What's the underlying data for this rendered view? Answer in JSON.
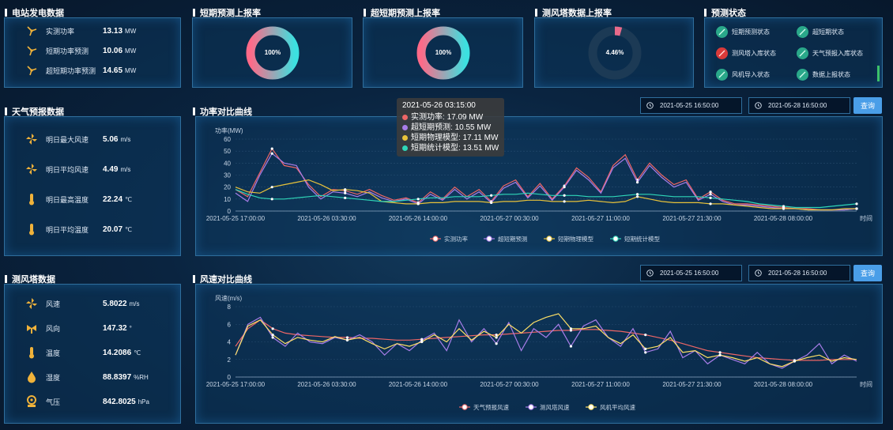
{
  "station": {
    "title": "电站发电数据",
    "rows": [
      {
        "label": "实测功率",
        "value": "13.13",
        "unit": "MW"
      },
      {
        "label": "短期功率预测",
        "value": "10.06",
        "unit": "MW"
      },
      {
        "label": "超短期功率预测",
        "value": "14.65",
        "unit": "MW"
      }
    ]
  },
  "short_report": {
    "title": "短期预测上报率",
    "value": "100%",
    "fraction": 1.0
  },
  "ultra_report": {
    "title": "超短期预测上报率",
    "value": "100%",
    "fraction": 1.0
  },
  "tower_report": {
    "title": "测风塔数据上报率",
    "value": "4.46%",
    "fraction": 0.0446
  },
  "status": {
    "title": "预测状态",
    "items": [
      {
        "label": "短期预测状态",
        "color": "#2aa88a"
      },
      {
        "label": "超短期状态",
        "color": "#2aa88a"
      },
      {
        "label": "测风塔入库状态",
        "color": "#d93a3a"
      },
      {
        "label": "天气预报入库状态",
        "color": "#2aa88a"
      },
      {
        "label": "风机导入状态",
        "color": "#2aa88a"
      },
      {
        "label": "数据上报状态",
        "color": "#2aa88a"
      }
    ]
  },
  "weather": {
    "title": "天气预报数据",
    "rows": [
      {
        "label": "明日最大风速",
        "value": "5.06",
        "unit": "m/s",
        "icon": "windmill-icon"
      },
      {
        "label": "明日平均风速",
        "value": "4.49",
        "unit": "m/s",
        "icon": "windmill-icon"
      },
      {
        "label": "明日最高温度",
        "value": "22.24",
        "unit": "℃",
        "icon": "thermometer-icon"
      },
      {
        "label": "明日平均温度",
        "value": "20.07",
        "unit": "℃",
        "icon": "thermometer-icon"
      }
    ]
  },
  "tower": {
    "title": "测风塔数据",
    "rows": [
      {
        "label": "风速",
        "value": "5.8022",
        "unit": "m/s",
        "icon": "windmill-icon"
      },
      {
        "label": "风向",
        "value": "147.32",
        "unit": "°",
        "icon": "wind-direction-icon"
      },
      {
        "label": "温度",
        "value": "14.2086",
        "unit": "℃",
        "icon": "thermometer-icon"
      },
      {
        "label": "湿度",
        "value": "88.8397",
        "unit": "%RH",
        "icon": "humidity-icon"
      },
      {
        "label": "气压",
        "value": "842.8025",
        "unit": "hPa",
        "icon": "pressure-icon"
      }
    ]
  },
  "power_chart_section": {
    "title": "功率对比曲线",
    "start": "2021-05-25 16:50:00",
    "end": "2021-05-28 16:50:00",
    "query": "查询"
  },
  "wind_chart_section": {
    "title": "风速对比曲线",
    "start": "2021-05-25 16:50:00",
    "end": "2021-05-28 16:50:00",
    "query": "查询"
  },
  "tooltip": {
    "time": "2021-05-26 03:15:00",
    "items": [
      {
        "label": "实测功率:",
        "value": "17.09 MW",
        "color": "#ee6666"
      },
      {
        "label": "超短期预测:",
        "value": "10.55 MW",
        "color": "#a77de8"
      },
      {
        "label": "短期物理模型:",
        "value": "17.11 MW",
        "color": "#e8c23a"
      },
      {
        "label": "短期统计模型:",
        "value": "13.51 MW",
        "color": "#2fd6b8"
      }
    ]
  },
  "chart_data": [
    {
      "type": "line",
      "ylabel": "功率(MW)",
      "xlabel": "时间",
      "ylim": [
        0,
        60
      ],
      "yticks": [
        0,
        10,
        20,
        30,
        40,
        50,
        60
      ],
      "xticks": [
        "2021-05-25 17:00:00",
        "2021-05-26 03:30:00",
        "2021-05-26 14:00:00",
        "2021-05-27 00:30:00",
        "2021-05-27 11:00:00",
        "2021-05-27 21:30:00",
        "2021-05-28 08:00:00"
      ],
      "series": [
        {
          "name": "实测功率",
          "color": "#ee6666",
          "values": [
            18,
            12,
            32,
            52,
            38,
            36,
            22,
            12,
            18,
            17,
            14,
            18,
            13,
            9,
            11,
            7,
            16,
            10,
            20,
            12,
            18,
            8,
            21,
            26,
            12,
            23,
            10,
            21,
            36,
            28,
            16,
            38,
            47,
            26,
            40,
            30,
            22,
            26,
            10,
            16,
            9,
            6,
            6,
            5,
            4,
            3,
            2,
            2,
            1,
            1,
            1,
            2
          ]
        },
        {
          "name": "超短期预测",
          "color": "#a77de8",
          "values": [
            15,
            8,
            30,
            48,
            40,
            38,
            20,
            10,
            16,
            15,
            12,
            16,
            11,
            8,
            10,
            6,
            14,
            9,
            18,
            10,
            16,
            7,
            19,
            24,
            11,
            21,
            9,
            20,
            34,
            26,
            15,
            36,
            44,
            24,
            38,
            28,
            20,
            24,
            9,
            14,
            8,
            5,
            5,
            4,
            3,
            2,
            2,
            1,
            1,
            1,
            1,
            2
          ]
        },
        {
          "name": "短期物理模型",
          "color": "#e8c23a",
          "values": [
            20,
            16,
            15,
            20,
            22,
            24,
            26,
            22,
            17,
            18,
            17,
            15,
            8,
            7,
            6,
            6,
            7,
            7,
            8,
            8,
            8,
            7,
            8,
            8,
            9,
            9,
            8,
            8,
            8,
            9,
            8,
            7,
            8,
            12,
            10,
            8,
            7,
            7,
            7,
            6,
            6,
            5,
            4,
            3,
            2,
            2,
            2,
            1,
            1,
            1,
            2,
            2
          ]
        },
        {
          "name": "短期统计模型",
          "color": "#2fd6b8",
          "values": [
            18,
            14,
            11,
            10,
            10,
            11,
            12,
            13,
            12,
            11,
            10,
            9,
            8,
            8,
            9,
            10,
            11,
            11,
            12,
            12,
            12,
            13,
            14,
            14,
            15,
            14,
            13,
            13,
            13,
            12,
            12,
            12,
            13,
            14,
            14,
            13,
            12,
            12,
            12,
            11,
            10,
            9,
            8,
            6,
            5,
            4,
            3,
            3,
            3,
            4,
            5,
            6
          ]
        }
      ]
    },
    {
      "type": "line",
      "ylabel": "风速(m/s)",
      "xlabel": "时间",
      "ylim": [
        0,
        8
      ],
      "yticks": [
        0,
        2,
        4,
        6,
        8
      ],
      "xticks": [
        "2021-05-25 17:00:00",
        "2021-05-26 03:30:00",
        "2021-05-26 14:00:00",
        "2021-05-27 00:30:00",
        "2021-05-27 11:00:00",
        "2021-05-27 21:30:00",
        "2021-05-28 08:00:00"
      ],
      "series": [
        {
          "name": "天气预报风速",
          "color": "#ee6666",
          "values": [
            3.5,
            5.5,
            6.5,
            5.5,
            5,
            4.8,
            4.7,
            4.6,
            4.5,
            4.5,
            4.4,
            4.4,
            4.3,
            4.2,
            4.2,
            4.3,
            4.4,
            4.5,
            4.6,
            4.7,
            4.8,
            4.8,
            4.9,
            5,
            5.1,
            5.2,
            5.3,
            5.3,
            5.4,
            5.4,
            5.3,
            5.2,
            5,
            4.8,
            4.5,
            4.2,
            3.8,
            3.4,
            3,
            2.8,
            2.6,
            2.4,
            2.2,
            2.1,
            2,
            1.9,
            1.9,
            1.9,
            2,
            2,
            2
          ]
        },
        {
          "name": "测风塔风速",
          "color": "#a77de8",
          "values": [
            2.5,
            6,
            6.8,
            4.5,
            3.5,
            5,
            4,
            3.8,
            4.5,
            4.2,
            4.8,
            4,
            2.5,
            3.8,
            3,
            4.2,
            5,
            3,
            6.5,
            4,
            5.5,
            3.8,
            6.2,
            3,
            5.5,
            4.5,
            6,
            3.5,
            5.8,
            6.5,
            4.5,
            3.5,
            5.5,
            2.8,
            3.2,
            5.2,
            2.2,
            3,
            1.5,
            2.5,
            2,
            1.5,
            2.8,
            1.5,
            1,
            1.8,
            2.5,
            3.8,
            1.5,
            2.5,
            1.8
          ]
        },
        {
          "name": "风机平均风速",
          "color": "#ffe066",
          "values": [
            2.5,
            5.8,
            6.5,
            4.8,
            3.8,
            4.5,
            4.2,
            4,
            4.6,
            4.2,
            4.5,
            3.8,
            3.2,
            3.8,
            3.5,
            4,
            4.8,
            4,
            5.5,
            4.2,
            5.2,
            4.5,
            6,
            5,
            6.2,
            6.8,
            7.2,
            5.5,
            5.5,
            5.8,
            4.5,
            3.8,
            4.8,
            3.2,
            3.5,
            4.5,
            2.8,
            3,
            2.2,
            2.5,
            2.2,
            1.8,
            2.2,
            1.5,
            1.2,
            1.8,
            2.2,
            2.5,
            1.8,
            2.2,
            2
          ]
        }
      ]
    }
  ]
}
